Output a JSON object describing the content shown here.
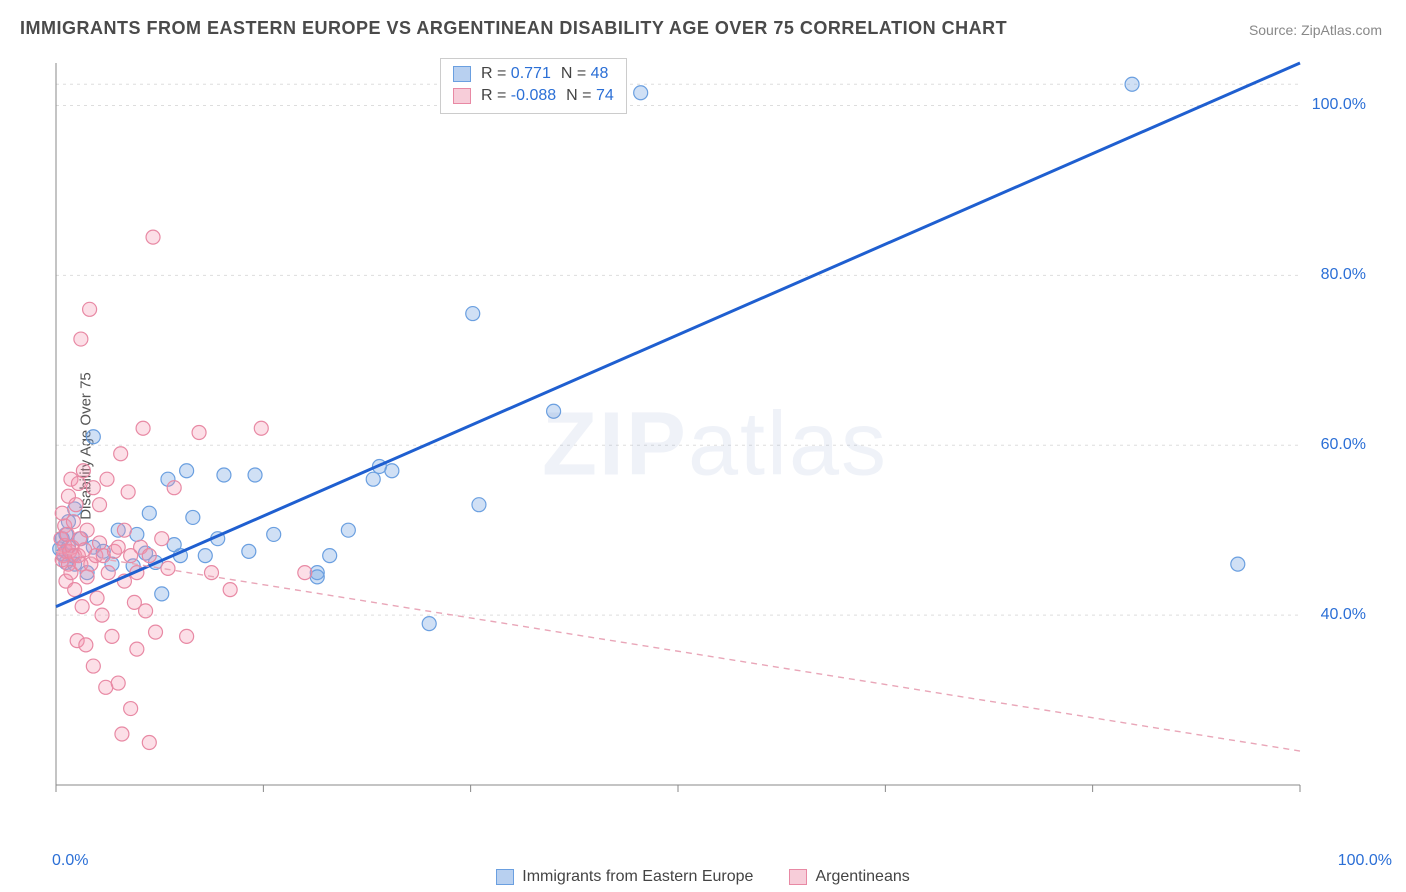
{
  "title": "IMMIGRANTS FROM EASTERN EUROPE VS ARGENTINEAN DISABILITY AGE OVER 75 CORRELATION CHART",
  "source_label": "Source: ",
  "source_value": "ZipAtlas.com",
  "ylabel": "Disability Age Over 75",
  "watermark": {
    "bold": "ZIP",
    "rest": "atlas"
  },
  "chart": {
    "type": "scatter",
    "xlim": [
      0,
      100
    ],
    "ylim": [
      20,
      105
    ],
    "x_ticks": {
      "positions": [
        0,
        16.67,
        33.33,
        50,
        66.67,
        83.33,
        100
      ],
      "label_left": "0.0%",
      "label_right": "100.0%"
    },
    "y_ticks": {
      "positions": [
        40,
        60,
        80,
        100
      ],
      "labels": [
        "40.0%",
        "60.0%",
        "80.0%",
        "100.0%"
      ]
    },
    "grid_color": "#dddddd",
    "axis_color": "#888888",
    "tick_color": "#888888",
    "background_color": "#ffffff",
    "marker_radius": 7,
    "marker_stroke_width": 1.2,
    "series": [
      {
        "id": "eastern_europe",
        "label": "Immigrants from Eastern Europe",
        "color_fill": "rgba(120,165,225,0.35)",
        "color_stroke": "#6a9fe0",
        "swatch_fill": "#b8d0f0",
        "swatch_stroke": "#6a9fe0",
        "trend": {
          "stroke": "#1f5fd0",
          "width": 3,
          "dash": "none",
          "x1": 0,
          "y1": 41,
          "x2": 100,
          "y2": 105
        },
        "stats": {
          "R": "0.771",
          "N": "48"
        },
        "points": [
          [
            0.3,
            47.8
          ],
          [
            0.5,
            49.0
          ],
          [
            0.6,
            47.2
          ],
          [
            0.8,
            49.5
          ],
          [
            0.8,
            46.2
          ],
          [
            1.0,
            48.0
          ],
          [
            1.0,
            51.0
          ],
          [
            1.3,
            47.0
          ],
          [
            1.5,
            52.5
          ],
          [
            1.5,
            46.0
          ],
          [
            2.0,
            49.0
          ],
          [
            2.5,
            45.0
          ],
          [
            3.0,
            48.0
          ],
          [
            3.0,
            61.0
          ],
          [
            3.8,
            47.5
          ],
          [
            4.5,
            46.0
          ],
          [
            5.0,
            50.0
          ],
          [
            6.2,
            45.8
          ],
          [
            6.5,
            49.5
          ],
          [
            7.2,
            47.3
          ],
          [
            7.5,
            52.0
          ],
          [
            8.0,
            46.2
          ],
          [
            8.5,
            42.5
          ],
          [
            9.0,
            56.0
          ],
          [
            9.5,
            48.3
          ],
          [
            10.0,
            47.0
          ],
          [
            10.5,
            57.0
          ],
          [
            11.0,
            51.5
          ],
          [
            12.0,
            47.0
          ],
          [
            13.0,
            49.0
          ],
          [
            13.5,
            56.5
          ],
          [
            15.5,
            47.5
          ],
          [
            16.0,
            56.5
          ],
          [
            17.5,
            49.5
          ],
          [
            21.0,
            45.0
          ],
          [
            21.0,
            44.5
          ],
          [
            22.0,
            47.0
          ],
          [
            23.5,
            50.0
          ],
          [
            25.5,
            56.0
          ],
          [
            26.0,
            57.5
          ],
          [
            27.0,
            57.0
          ],
          [
            30.0,
            39.0
          ],
          [
            33.5,
            75.5
          ],
          [
            34.0,
            53.0
          ],
          [
            40.0,
            64.0
          ],
          [
            47.0,
            101.5
          ],
          [
            86.5,
            102.5
          ],
          [
            95.0,
            46.0
          ]
        ]
      },
      {
        "id": "argentineans",
        "label": "Argentineans",
        "color_fill": "rgba(245,150,175,0.30)",
        "color_stroke": "#e889a4",
        "swatch_fill": "#f7cdd9",
        "swatch_stroke": "#e889a4",
        "trend": {
          "stroke": "#e9a6b8",
          "width": 1.4,
          "dash": "6,5",
          "x1": 0,
          "y1": 47.5,
          "x2": 100,
          "y2": 24
        },
        "stats": {
          "R": "-0.088",
          "N": "74"
        },
        "points": [
          [
            0.4,
            49.0
          ],
          [
            0.5,
            46.5
          ],
          [
            0.5,
            52.0
          ],
          [
            0.6,
            47.0
          ],
          [
            0.7,
            48.2
          ],
          [
            0.7,
            50.5
          ],
          [
            0.8,
            47.5
          ],
          [
            0.8,
            44.0
          ],
          [
            0.9,
            49.5
          ],
          [
            1.0,
            54.0
          ],
          [
            1.0,
            46.0
          ],
          [
            1.1,
            47.5
          ],
          [
            1.2,
            45.0
          ],
          [
            1.2,
            56.0
          ],
          [
            1.3,
            48.0
          ],
          [
            1.4,
            51.0
          ],
          [
            1.5,
            43.0
          ],
          [
            1.5,
            47.0
          ],
          [
            1.6,
            53.0
          ],
          [
            1.7,
            37.0
          ],
          [
            1.8,
            55.5
          ],
          [
            1.8,
            47.0
          ],
          [
            1.9,
            49.0
          ],
          [
            2.0,
            72.5
          ],
          [
            2.0,
            46.0
          ],
          [
            2.1,
            41.0
          ],
          [
            2.2,
            57.0
          ],
          [
            2.3,
            47.7
          ],
          [
            2.4,
            36.5
          ],
          [
            2.5,
            44.5
          ],
          [
            2.5,
            50.0
          ],
          [
            2.7,
            76.0
          ],
          [
            2.8,
            46.0
          ],
          [
            3.0,
            34.0
          ],
          [
            3.0,
            55.0
          ],
          [
            3.2,
            47.0
          ],
          [
            3.3,
            42.0
          ],
          [
            3.5,
            48.5
          ],
          [
            3.5,
            53.0
          ],
          [
            3.7,
            40.0
          ],
          [
            3.8,
            47.0
          ],
          [
            4.0,
            31.5
          ],
          [
            4.1,
            56.0
          ],
          [
            4.2,
            45.0
          ],
          [
            4.5,
            37.5
          ],
          [
            4.7,
            47.5
          ],
          [
            5.0,
            32.0
          ],
          [
            5.0,
            48.0
          ],
          [
            5.2,
            59.0
          ],
          [
            5.3,
            26.0
          ],
          [
            5.5,
            44.0
          ],
          [
            5.5,
            50.0
          ],
          [
            5.8,
            54.5
          ],
          [
            6.0,
            29.0
          ],
          [
            6.0,
            47.0
          ],
          [
            6.3,
            41.5
          ],
          [
            6.5,
            45.0
          ],
          [
            6.5,
            36.0
          ],
          [
            6.8,
            48.0
          ],
          [
            7.0,
            62.0
          ],
          [
            7.2,
            40.5
          ],
          [
            7.5,
            25.0
          ],
          [
            7.5,
            47.0
          ],
          [
            7.8,
            84.5
          ],
          [
            8.0,
            38.0
          ],
          [
            8.5,
            49.0
          ],
          [
            9.0,
            45.5
          ],
          [
            9.5,
            55.0
          ],
          [
            10.5,
            37.5
          ],
          [
            11.5,
            61.5
          ],
          [
            12.5,
            45.0
          ],
          [
            14.0,
            43.0
          ],
          [
            16.5,
            62.0
          ],
          [
            20.0,
            45.0
          ]
        ]
      }
    ],
    "legend_top": {
      "r_label": "R = ",
      "n_label": "N = "
    }
  }
}
